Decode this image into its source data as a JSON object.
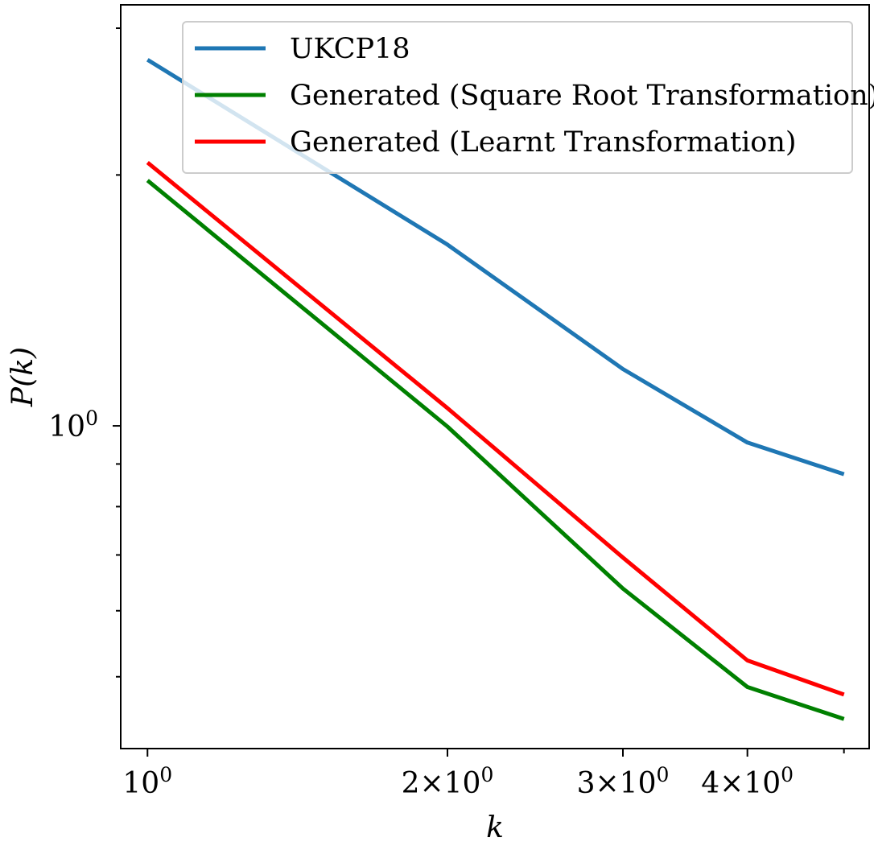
{
  "chart_data": {
    "type": "line",
    "title": "",
    "xlabel": "k",
    "ylabel": "P(k)",
    "xscale": "log",
    "yscale": "log",
    "xlim": [
      0.94,
      5.3
    ],
    "ylim": [
      0.41,
      3.2
    ],
    "grid": false,
    "legend_position": "top-right",
    "x": [
      1,
      2,
      3,
      4,
      5
    ],
    "series": [
      {
        "name": "UKCP18",
        "color": "#1f77b4",
        "values": [
          2.75,
          1.65,
          1.17,
          0.955,
          0.875
        ]
      },
      {
        "name": "Generated (Square Root Transformation)",
        "color": "#008000",
        "values": [
          1.97,
          0.998,
          0.638,
          0.486,
          0.445
        ]
      },
      {
        "name": "Generated (Learnt Transformation)",
        "color": "#ff0000",
        "values": [
          2.07,
          1.05,
          0.695,
          0.523,
          0.476
        ]
      }
    ],
    "x_tick_labels": [
      {
        "value": 1,
        "base": "10",
        "exp": "0"
      },
      {
        "value": 2,
        "base": "2×10",
        "exp": "0"
      },
      {
        "value": 3,
        "base": "3×10",
        "exp": "0"
      },
      {
        "value": 4,
        "base": "4×10",
        "exp": "0"
      }
    ],
    "y_tick_labels": [
      {
        "value": 1,
        "base": "10",
        "exp": "0"
      }
    ]
  }
}
